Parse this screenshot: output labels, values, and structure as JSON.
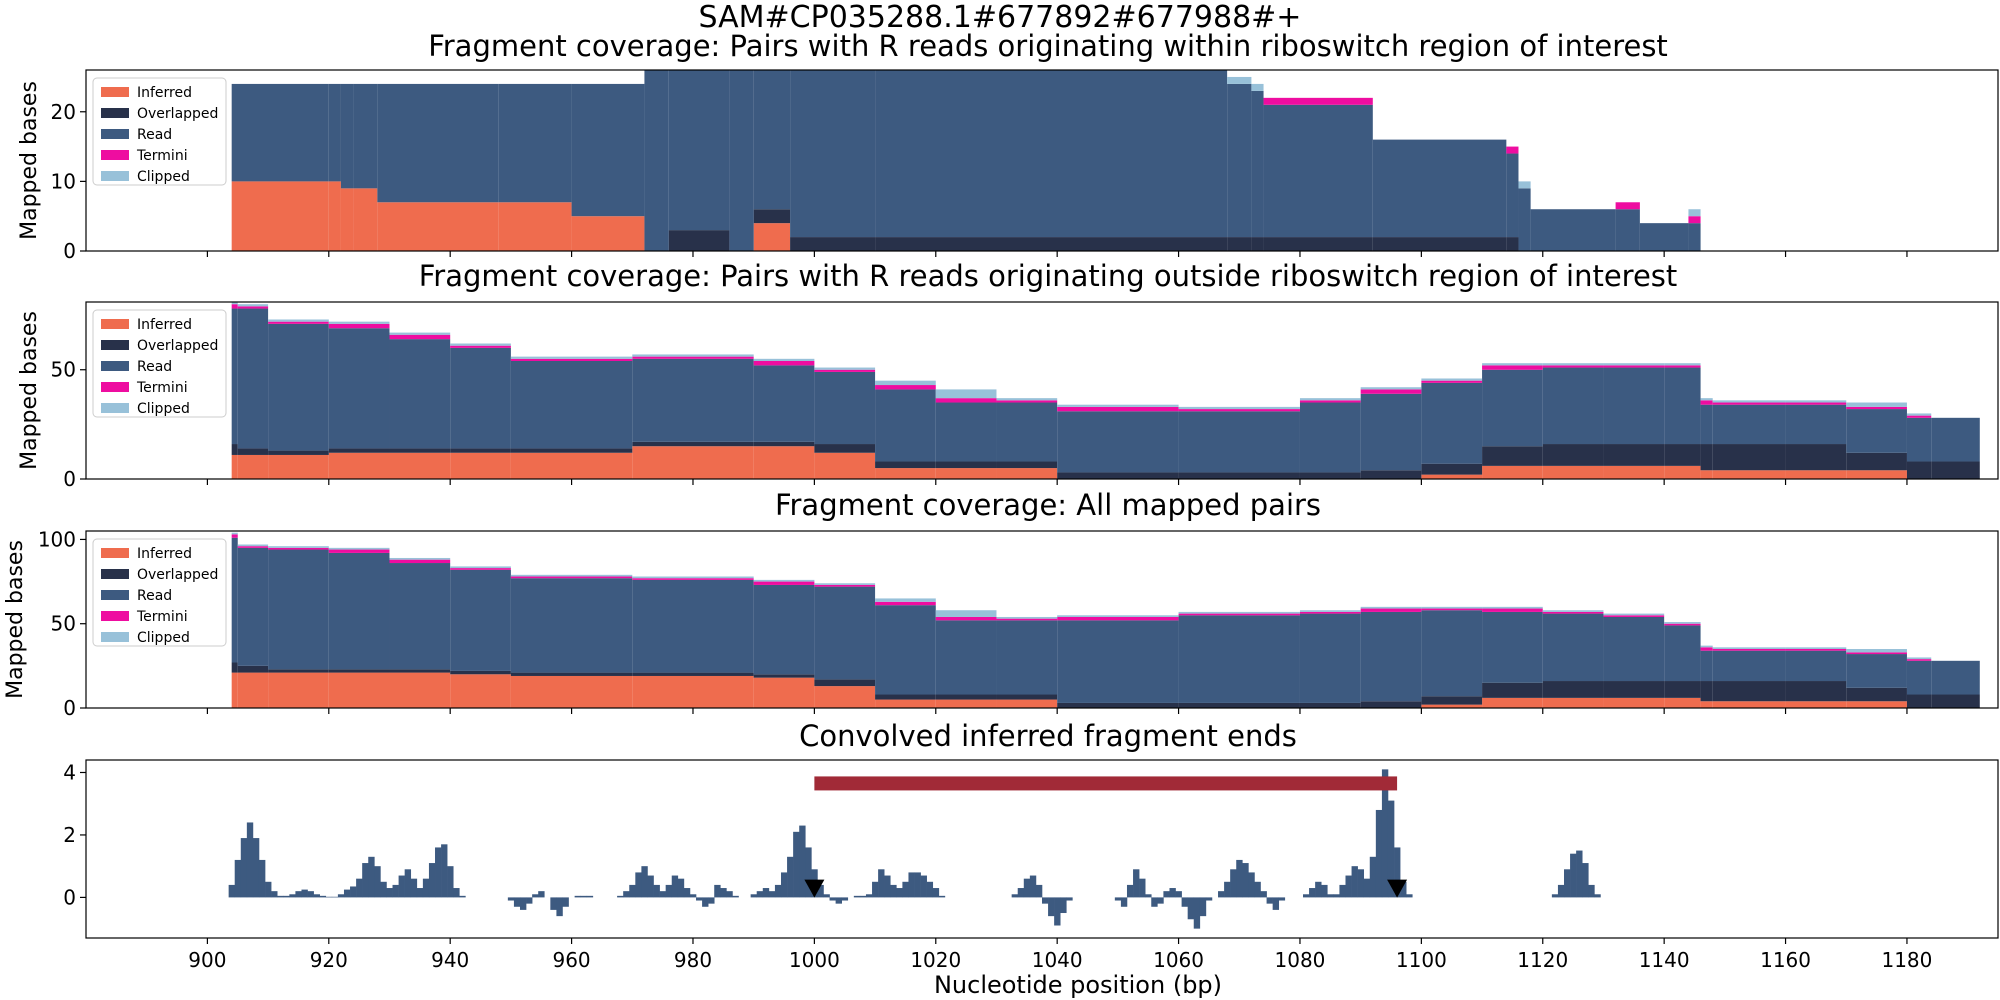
{
  "figure": {
    "suptitle": "SAM#CP035288.1#677892#677988#+",
    "xlabel": "Nucleotide position (bp)",
    "xticks": [
      900,
      920,
      940,
      960,
      980,
      1000,
      1020,
      1040,
      1060,
      1080,
      1100,
      1120,
      1140,
      1160,
      1180
    ],
    "xlim": [
      880,
      1195
    ]
  },
  "colors": {
    "inferred": "#ef6c4e",
    "overlapped": "#28314a",
    "read": "#3d5a80",
    "termini": "#ee0da0",
    "clipped": "#98c1d9",
    "bar": "#a12a37",
    "marker": "#000000"
  },
  "legend_labels": [
    "Inferred",
    "Overlapped",
    "Read",
    "Termini",
    "Clipped"
  ],
  "chart_data": [
    {
      "type": "area",
      "title": "Fragment coverage: Pairs with R reads originating within riboswitch region of interest",
      "ylabel": "Mapped bases",
      "ylim": [
        0,
        26
      ],
      "yticks": [
        0,
        10,
        20
      ],
      "legend": "top-left",
      "x": [
        904,
        920,
        922,
        924,
        928,
        948,
        960,
        972,
        976,
        986,
        990,
        996,
        1010,
        1068,
        1072,
        1074,
        1092,
        1114,
        1116,
        1118,
        1132,
        1136,
        1144,
        1146,
        1150,
        1160
      ],
      "series": [
        {
          "name": "Inferred",
          "values": [
            10,
            10,
            9,
            9,
            7,
            7,
            5,
            0,
            0,
            0,
            4,
            0,
            0,
            0,
            0,
            0,
            0,
            0,
            0,
            0,
            0,
            0,
            0,
            0,
            0,
            0
          ]
        },
        {
          "name": "Overlapped",
          "values": [
            0,
            0,
            0,
            0,
            0,
            0,
            0,
            0,
            3,
            0,
            2,
            2,
            2,
            2,
            2,
            2,
            2,
            2,
            0,
            0,
            0,
            0,
            0,
            0,
            0,
            0
          ]
        },
        {
          "name": "Read",
          "values": [
            14,
            14,
            15,
            15,
            17,
            17,
            19,
            26,
            23,
            26,
            20,
            24,
            24,
            22,
            21,
            19,
            14,
            12,
            9,
            6,
            6,
            4,
            4,
            0,
            0,
            0
          ]
        },
        {
          "name": "Termini",
          "values": [
            0,
            0,
            0,
            0,
            0,
            0,
            0,
            1,
            0,
            0,
            0,
            0,
            1,
            0,
            0,
            1,
            0,
            1,
            0,
            0,
            1,
            0,
            1,
            0,
            0,
            0
          ]
        },
        {
          "name": "Clipped",
          "values": [
            0,
            0,
            0,
            0,
            0,
            0,
            0,
            0,
            0,
            0,
            0,
            0,
            0,
            1,
            1,
            0,
            0,
            0,
            1,
            0,
            0,
            0,
            1,
            0,
            0,
            0
          ]
        }
      ]
    },
    {
      "type": "area",
      "title": "Fragment coverage: Pairs with R reads originating outside riboswitch region of interest",
      "ylabel": "Mapped bases",
      "ylim": [
        0,
        81
      ],
      "yticks": [
        0,
        50
      ],
      "legend": "top-left",
      "x": [
        904,
        905,
        910,
        920,
        930,
        940,
        950,
        970,
        990,
        1000,
        1010,
        1020,
        1030,
        1040,
        1060,
        1080,
        1090,
        1100,
        1110,
        1120,
        1130,
        1140,
        1146,
        1148,
        1160,
        1170,
        1180,
        1184,
        1192
      ],
      "series": [
        {
          "name": "Inferred",
          "values": [
            11,
            11,
            11,
            12,
            12,
            12,
            12,
            15,
            15,
            12,
            5,
            5,
            5,
            0,
            0,
            0,
            0,
            2,
            6,
            6,
            6,
            6,
            4,
            4,
            4,
            4,
            0,
            0,
            0
          ]
        },
        {
          "name": "Overlapped",
          "values": [
            5,
            3,
            2,
            2,
            2,
            2,
            2,
            2,
            2,
            4,
            3,
            3,
            3,
            3,
            3,
            3,
            4,
            5,
            9,
            10,
            10,
            10,
            12,
            12,
            12,
            8,
            8,
            8,
            0
          ]
        },
        {
          "name": "Read",
          "values": [
            62,
            64,
            58,
            55,
            50,
            46,
            40,
            38,
            35,
            33,
            33,
            27,
            27,
            28,
            28,
            32,
            35,
            37,
            35,
            35,
            35,
            35,
            18,
            18,
            18,
            20,
            20,
            20,
            0
          ]
        },
        {
          "name": "Termini",
          "values": [
            2,
            1,
            1,
            2,
            2,
            1,
            1,
            1,
            2,
            1,
            2,
            2,
            1,
            2,
            1,
            1,
            2,
            1,
            2,
            1,
            1,
            1,
            2,
            1,
            1,
            1,
            1,
            0,
            0
          ]
        },
        {
          "name": "Clipped",
          "values": [
            1,
            1,
            1,
            1,
            1,
            1,
            1,
            1,
            1,
            1,
            2,
            4,
            1,
            1,
            1,
            1,
            1,
            1,
            1,
            1,
            1,
            1,
            1,
            1,
            1,
            2,
            1,
            0,
            0
          ]
        }
      ]
    },
    {
      "type": "area",
      "title": "Fragment coverage: All mapped pairs",
      "ylabel": "Mapped bases",
      "ylim": [
        0,
        105
      ],
      "yticks": [
        0,
        50,
        100
      ],
      "legend": "top-left",
      "x": [
        904,
        905,
        910,
        920,
        930,
        940,
        950,
        970,
        990,
        1000,
        1010,
        1020,
        1030,
        1040,
        1060,
        1080,
        1090,
        1100,
        1110,
        1120,
        1130,
        1140,
        1146,
        1148,
        1160,
        1170,
        1180,
        1184,
        1192
      ],
      "series": [
        {
          "name": "Inferred",
          "values": [
            21,
            21,
            21,
            21,
            21,
            20,
            19,
            19,
            18,
            13,
            5,
            5,
            5,
            0,
            0,
            0,
            0,
            2,
            6,
            6,
            6,
            6,
            4,
            4,
            4,
            4,
            0,
            0,
            0
          ]
        },
        {
          "name": "Overlapped",
          "values": [
            6,
            4,
            2,
            2,
            2,
            2,
            2,
            2,
            2,
            4,
            3,
            3,
            3,
            3,
            3,
            3,
            4,
            5,
            9,
            10,
            10,
            10,
            12,
            12,
            12,
            8,
            8,
            8,
            0
          ]
        },
        {
          "name": "Read",
          "values": [
            74,
            70,
            71,
            69,
            63,
            60,
            56,
            55,
            53,
            55,
            53,
            44,
            44,
            49,
            52,
            53,
            53,
            51,
            42,
            40,
            38,
            33,
            18,
            18,
            18,
            20,
            20,
            20,
            0
          ]
        },
        {
          "name": "Termini",
          "values": [
            2,
            1,
            1,
            2,
            2,
            1,
            1,
            1,
            2,
            1,
            2,
            2,
            1,
            2,
            1,
            1,
            2,
            1,
            2,
            1,
            1,
            1,
            2,
            1,
            1,
            1,
            1,
            0,
            0
          ]
        },
        {
          "name": "Clipped",
          "values": [
            1,
            1,
            1,
            1,
            1,
            1,
            1,
            1,
            1,
            1,
            2,
            4,
            1,
            1,
            1,
            1,
            1,
            1,
            1,
            1,
            1,
            1,
            1,
            1,
            1,
            2,
            1,
            0,
            0
          ]
        }
      ]
    },
    {
      "type": "bar",
      "title": "Convolved inferred fragment ends",
      "ylabel": "",
      "ylim": [
        -1.3,
        4.4
      ],
      "yticks": [
        0,
        2,
        4
      ],
      "region_bar": {
        "x_start": 1000,
        "x_end": 1096,
        "y": 3.65
      },
      "markers": [
        {
          "x": 1000,
          "y": 0.25
        },
        {
          "x": 1096,
          "y": 0.25
        }
      ],
      "x_start": 904,
      "values": [
        0.4,
        1.2,
        1.9,
        2.4,
        1.9,
        1.2,
        0.5,
        0.2,
        0.05,
        0.05,
        0.1,
        0.2,
        0.25,
        0.2,
        0.1,
        0.05,
        0.02,
        0.02,
        0.1,
        0.25,
        0.35,
        0.6,
        1.1,
        1.3,
        1.0,
        0.5,
        0.3,
        0.4,
        0.7,
        0.9,
        0.6,
        0.3,
        0.6,
        1.1,
        1.6,
        1.7,
        1.0,
        0.3,
        0.05,
        0,
        0,
        0,
        0,
        0,
        0,
        0,
        -0.1,
        -0.3,
        -0.4,
        -0.2,
        0.1,
        0.2,
        0,
        -0.4,
        -0.6,
        -0.3,
        0,
        0.05,
        0.05,
        0.05,
        0,
        0,
        0,
        0,
        0.05,
        0.2,
        0.4,
        0.8,
        1.0,
        0.7,
        0.4,
        0.2,
        0.4,
        0.7,
        0.6,
        0.3,
        0.1,
        -0.1,
        -0.3,
        -0.2,
        0.4,
        0.3,
        0.2,
        0.05,
        0,
        0,
        0.1,
        0.2,
        0.3,
        0.2,
        0.4,
        0.8,
        1.3,
        2.1,
        2.3,
        1.6,
        0.9,
        0.4,
        0.1,
        -0.1,
        -0.2,
        -0.1,
        0,
        0.05,
        0.05,
        0.1,
        0.5,
        0.9,
        0.7,
        0.4,
        0.3,
        0.5,
        0.8,
        0.8,
        0.7,
        0.5,
        0.3,
        0.05,
        0,
        0,
        0,
        0,
        0,
        0,
        0,
        0,
        0,
        0,
        0,
        0.1,
        0.3,
        0.6,
        0.7,
        0.4,
        -0.2,
        -0.6,
        -0.9,
        -0.5,
        -0.1,
        0,
        0,
        0,
        0,
        0,
        0,
        0,
        -0.1,
        -0.3,
        0.4,
        0.9,
        0.6,
        0.1,
        -0.3,
        -0.2,
        0.2,
        0.3,
        0.2,
        -0.3,
        -0.7,
        -1.0,
        -0.6,
        -0.1,
        0,
        0.2,
        0.5,
        0.9,
        1.2,
        1.1,
        0.8,
        0.5,
        0.2,
        -0.2,
        -0.4,
        -0.1,
        0,
        0,
        0,
        0.1,
        0.3,
        0.5,
        0.4,
        0.1,
        0.1,
        0.4,
        0.7,
        1.0,
        0.9,
        0.6,
        1.3,
        2.8,
        4.1,
        3.1,
        1.6,
        0.5,
        0.1,
        0,
        0,
        0,
        0,
        0,
        0,
        0,
        0,
        0,
        0,
        0,
        0,
        0,
        0,
        0,
        0,
        0,
        0,
        0,
        0,
        0,
        0,
        0,
        0.1,
        0.4,
        0.9,
        1.4,
        1.5,
        1.1,
        0.4,
        0.1
      ]
    }
  ]
}
